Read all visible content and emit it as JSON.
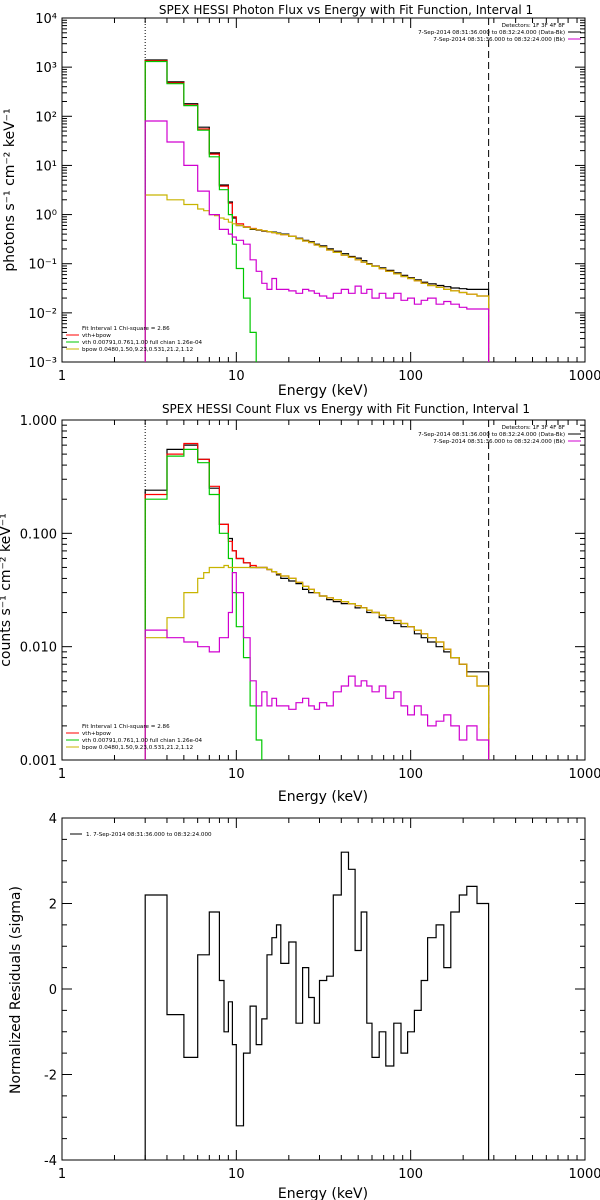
{
  "colors": {
    "data": "#000000",
    "total": "#ff0000",
    "vth": "#00c800",
    "bpow": "#c8b400",
    "bk": "#d000d0"
  },
  "chart_data": [
    {
      "type": "line",
      "title": "SPEX HESSI Photon Flux vs Energy with Fit Function, Interval 1",
      "xlabel": "Energy (keV)",
      "ylabel": "photons s⁻¹ cm⁻² keV⁻¹",
      "xscale": "log",
      "yscale": "log",
      "xlim": [
        1,
        1000
      ],
      "ylim": [
        0.001,
        10000
      ],
      "xticks": [
        "1",
        "10",
        "100",
        "1000"
      ],
      "yticks": [
        "10⁻³",
        "10⁻²",
        "10⁻¹",
        "10⁰",
        "10¹",
        "10²",
        "10³",
        "10⁴"
      ],
      "vlines": [
        3,
        280
      ],
      "legend_right": [
        "Detectors: 1F 3F 4F 8F",
        "7-Sep-2014 08:31:36.000 to 08:32:24.000 (Data-Bk)",
        "7-Sep-2014 08:31:36.000 to 08:32:24.000 (Bk)"
      ],
      "legend_left": [
        "Fit Interval 1   Chi-square = 2.86",
        "vth+bpow",
        "vth 0.00791,0.761,1.00  full chian 1.26e-04",
        "bpow 0.0480,1.50,9.23,0.531,21.2,1.12"
      ],
      "x": [
        3,
        3.5,
        4,
        4.5,
        5,
        5.5,
        6,
        6.5,
        7,
        7.5,
        8,
        8.5,
        9,
        9.5,
        10,
        11,
        12,
        13,
        14,
        15,
        16,
        17,
        18,
        20,
        22,
        24,
        26,
        28,
        30,
        33,
        36,
        40,
        44,
        48,
        52,
        56,
        60,
        66,
        72,
        80,
        88,
        96,
        105,
        115,
        125,
        140,
        155,
        170,
        190,
        210,
        240,
        280
      ],
      "series": [
        {
          "name": "Data-Bk",
          "color": "data",
          "values": [
            1400,
            1400,
            500,
            500,
            180,
            180,
            60,
            60,
            18,
            18,
            4,
            4,
            1.8,
            0.85,
            0.6,
            0.55,
            0.5,
            0.48,
            0.46,
            0.45,
            0.44,
            0.42,
            0.4,
            0.36,
            0.33,
            0.3,
            0.28,
            0.25,
            0.23,
            0.2,
            0.18,
            0.16,
            0.14,
            0.13,
            0.115,
            0.1,
            0.09,
            0.082,
            0.073,
            0.065,
            0.058,
            0.052,
            0.047,
            0.042,
            0.039,
            0.036,
            0.034,
            0.032,
            0.031,
            0.03,
            0.03,
            0.03
          ]
        },
        {
          "name": "vth+bpow",
          "color": "total",
          "values": [
            1350,
            1350,
            480,
            480,
            170,
            170,
            55,
            55,
            17,
            17,
            3.8,
            3.8,
            1.7,
            0.9,
            0.65,
            0.56,
            0.52,
            0.49,
            0.47,
            0.45,
            0.43,
            0.41,
            0.39,
            0.36,
            0.32,
            0.29,
            0.27,
            0.24,
            0.22,
            0.19,
            0.17,
            0.15,
            0.135,
            0.12,
            0.108,
            0.097,
            0.088,
            0.079,
            0.07,
            0.062,
            0.055,
            0.05,
            0.045,
            0.04,
            0.036,
            0.033,
            0.03,
            0.028,
            0.026,
            0.024,
            0.022,
            0.02
          ]
        },
        {
          "name": "vth",
          "color": "vth",
          "values": [
            1300,
            1300,
            460,
            460,
            165,
            165,
            52,
            52,
            15,
            15,
            3.2,
            3.2,
            1.0,
            0.25,
            0.08,
            0.02,
            0.004,
            0.0009,
            0.0009,
            0.0009,
            0.0009,
            0.0009,
            0.0009,
            0.0009,
            0.0009,
            0.0009,
            0.0009,
            0.0009,
            0.0009,
            0.0009,
            0.0009,
            0.0009,
            0.0009,
            0.0009,
            0.0009,
            0.0009,
            0.0009,
            0.0009,
            0.0009,
            0.0009,
            0.0009,
            0.0009,
            0.0009,
            0.0009,
            0.0009,
            0.0009,
            0.0009,
            0.0009,
            0.0009,
            0.0009,
            0.0009,
            0.0009
          ]
        },
        {
          "name": "bpow",
          "color": "bpow",
          "values": [
            2.5,
            2.5,
            2.0,
            2.0,
            1.6,
            1.6,
            1.3,
            1.2,
            1.0,
            0.95,
            0.85,
            0.8,
            0.7,
            0.65,
            0.6,
            0.55,
            0.51,
            0.49,
            0.47,
            0.45,
            0.43,
            0.41,
            0.39,
            0.36,
            0.32,
            0.29,
            0.27,
            0.24,
            0.22,
            0.19,
            0.17,
            0.15,
            0.135,
            0.12,
            0.108,
            0.097,
            0.088,
            0.079,
            0.07,
            0.062,
            0.055,
            0.05,
            0.045,
            0.04,
            0.036,
            0.033,
            0.03,
            0.028,
            0.026,
            0.024,
            0.022,
            0.02
          ]
        },
        {
          "name": "Bk",
          "color": "bk",
          "values": [
            80,
            80,
            30,
            30,
            10,
            10,
            3.0,
            3.0,
            1.0,
            1.0,
            0.5,
            0.5,
            0.4,
            0.35,
            0.3,
            0.25,
            0.12,
            0.07,
            0.04,
            0.03,
            0.05,
            0.03,
            0.03,
            0.028,
            0.025,
            0.03,
            0.028,
            0.025,
            0.022,
            0.02,
            0.025,
            0.03,
            0.025,
            0.035,
            0.025,
            0.03,
            0.02,
            0.025,
            0.02,
            0.025,
            0.018,
            0.02,
            0.015,
            0.018,
            0.02,
            0.015,
            0.017,
            0.015,
            0.013,
            0.012,
            0.012,
            0.001
          ]
        }
      ]
    },
    {
      "type": "line",
      "title": "SPEX HESSI Count Flux vs Energy with Fit Function, Interval 1",
      "xlabel": "Energy (keV)",
      "ylabel": "counts s⁻¹ cm⁻² keV⁻¹",
      "xscale": "log",
      "yscale": "log",
      "xlim": [
        1,
        1000
      ],
      "ylim": [
        0.001,
        1
      ],
      "xticks": [
        "1",
        "10",
        "100",
        "1000"
      ],
      "yticks": [
        "0.001",
        "0.010",
        "0.100",
        "1.000"
      ],
      "vlines": [
        3,
        280
      ],
      "legend_right": [
        "Detectors: 1F 3F 4F 8F",
        "7-Sep-2014 08:31:36.000 to 08:32:24.000 (Data-Bk)",
        "7-Sep-2014 08:31:36.000 to 08:32:24.000 (Bk)"
      ],
      "legend_left": [
        "Fit Interval 1   Chi-square = 2.86",
        "vth+bpow",
        "vth 0.00791,0.761,1.00  full chian 1.26e-04",
        "bpow 0.0480,1.50,9.23,0.531,21.2,1.12"
      ],
      "x": [
        3,
        3.5,
        4,
        4.5,
        5,
        5.5,
        6,
        6.5,
        7,
        7.5,
        8,
        8.5,
        9,
        9.5,
        10,
        11,
        12,
        13,
        14,
        15,
        16,
        17,
        18,
        20,
        22,
        24,
        26,
        28,
        30,
        33,
        36,
        40,
        44,
        48,
        52,
        56,
        60,
        66,
        72,
        80,
        88,
        96,
        105,
        115,
        125,
        140,
        155,
        170,
        190,
        210,
        240,
        280
      ],
      "series": [
        {
          "name": "Data-Bk",
          "color": "data",
          "values": [
            0.24,
            0.24,
            0.55,
            0.55,
            0.6,
            0.6,
            0.45,
            0.45,
            0.25,
            0.25,
            0.12,
            0.12,
            0.09,
            0.07,
            0.06,
            0.055,
            0.05,
            0.05,
            0.05,
            0.048,
            0.046,
            0.043,
            0.04,
            0.038,
            0.036,
            0.032,
            0.03,
            0.03,
            0.028,
            0.026,
            0.025,
            0.024,
            0.024,
            0.022,
            0.022,
            0.02,
            0.02,
            0.018,
            0.017,
            0.016,
            0.015,
            0.015,
            0.013,
            0.012,
            0.011,
            0.01,
            0.009,
            0.008,
            0.007,
            0.006,
            0.006,
            0.005
          ]
        },
        {
          "name": "vth+bpow",
          "color": "total",
          "values": [
            0.22,
            0.22,
            0.5,
            0.5,
            0.62,
            0.62,
            0.45,
            0.45,
            0.26,
            0.26,
            0.12,
            0.12,
            0.085,
            0.07,
            0.06,
            0.055,
            0.052,
            0.05,
            0.05,
            0.048,
            0.046,
            0.044,
            0.042,
            0.04,
            0.037,
            0.034,
            0.032,
            0.03,
            0.028,
            0.027,
            0.026,
            0.025,
            0.024,
            0.023,
            0.022,
            0.021,
            0.02,
            0.019,
            0.018,
            0.017,
            0.016,
            0.015,
            0.014,
            0.013,
            0.012,
            0.011,
            0.0095,
            0.008,
            0.007,
            0.0055,
            0.0045,
            0.004
          ]
        },
        {
          "name": "vth",
          "color": "vth",
          "values": [
            0.2,
            0.2,
            0.48,
            0.48,
            0.55,
            0.55,
            0.42,
            0.42,
            0.22,
            0.22,
            0.1,
            0.1,
            0.06,
            0.03,
            0.015,
            0.008,
            0.003,
            0.0015,
            0.0009,
            0.0009,
            0.0009,
            0.0009,
            0.0009,
            0.0009,
            0.0009,
            0.0009,
            0.0009,
            0.0009,
            0.0009,
            0.0009,
            0.0009,
            0.0009,
            0.0009,
            0.0009,
            0.0009,
            0.0009,
            0.0009,
            0.0009,
            0.0009,
            0.0009,
            0.0009,
            0.0009,
            0.0009,
            0.0009,
            0.0009,
            0.0009,
            0.0009,
            0.0009,
            0.0009,
            0.0009,
            0.0009,
            0.0009
          ]
        },
        {
          "name": "bpow",
          "color": "bpow",
          "values": [
            0.012,
            0.012,
            0.018,
            0.018,
            0.03,
            0.03,
            0.04,
            0.045,
            0.05,
            0.05,
            0.05,
            0.052,
            0.05,
            0.05,
            0.05,
            0.05,
            0.05,
            0.05,
            0.05,
            0.048,
            0.046,
            0.044,
            0.042,
            0.04,
            0.037,
            0.034,
            0.032,
            0.03,
            0.028,
            0.027,
            0.026,
            0.025,
            0.024,
            0.023,
            0.022,
            0.021,
            0.02,
            0.019,
            0.018,
            0.017,
            0.016,
            0.015,
            0.014,
            0.013,
            0.012,
            0.011,
            0.0095,
            0.008,
            0.007,
            0.0055,
            0.0045,
            0.001
          ]
        },
        {
          "name": "Bk",
          "color": "bk",
          "values": [
            0.014,
            0.014,
            0.012,
            0.012,
            0.011,
            0.011,
            0.01,
            0.01,
            0.009,
            0.009,
            0.012,
            0.012,
            0.02,
            0.045,
            0.03,
            0.012,
            0.005,
            0.003,
            0.004,
            0.003,
            0.0035,
            0.003,
            0.003,
            0.0028,
            0.0032,
            0.0035,
            0.003,
            0.0028,
            0.0032,
            0.003,
            0.004,
            0.0045,
            0.0055,
            0.0045,
            0.005,
            0.0045,
            0.004,
            0.0045,
            0.0035,
            0.004,
            0.003,
            0.0025,
            0.003,
            0.0025,
            0.002,
            0.0022,
            0.0025,
            0.002,
            0.0015,
            0.002,
            0.0015,
            0.001
          ]
        }
      ]
    },
    {
      "type": "line",
      "title": "",
      "xlabel": "Energy (keV)",
      "ylabel": "Normalized Residuals (sigma)",
      "xscale": "log",
      "yscale": "linear",
      "xlim": [
        1,
        1000
      ],
      "ylim": [
        -4,
        4
      ],
      "xticks": [
        "1",
        "10",
        "100",
        "1000"
      ],
      "yticks": [
        "-4",
        "-2",
        "0",
        "2",
        "4"
      ],
      "legend_right": [],
      "legend_left": [
        "1.  7-Sep-2014 08:31:36.000 to 08:32:24.000"
      ],
      "x": [
        3,
        3.5,
        4,
        4.5,
        5,
        5.5,
        6,
        6.5,
        7,
        7.5,
        8,
        8.5,
        9,
        9.5,
        10,
        11,
        12,
        13,
        14,
        15,
        16,
        17,
        18,
        20,
        22,
        24,
        26,
        28,
        30,
        33,
        36,
        40,
        44,
        48,
        52,
        56,
        60,
        66,
        72,
        80,
        88,
        96,
        105,
        115,
        125,
        140,
        155,
        170,
        190,
        210,
        240,
        280
      ],
      "series": [
        {
          "name": "1.  7-Sep-2014 08:31:36.000 to 08:32:24.000",
          "color": "data",
          "values": [
            2.2,
            2.2,
            -0.6,
            -0.6,
            -1.6,
            -1.6,
            0.8,
            0.8,
            1.8,
            1.8,
            0.2,
            -1.0,
            -0.3,
            -1.3,
            -3.2,
            -1.5,
            -0.4,
            -1.3,
            -0.7,
            0.8,
            1.2,
            1.5,
            0.6,
            1.1,
            -0.8,
            0.5,
            -0.2,
            -0.8,
            0.2,
            0.3,
            2.2,
            3.2,
            2.8,
            0.9,
            1.8,
            -0.8,
            -1.6,
            -1.0,
            -1.8,
            -0.8,
            -1.5,
            -1.0,
            -0.5,
            0.2,
            1.2,
            1.5,
            0.5,
            1.8,
            2.2,
            2.4,
            2.0,
            0.0
          ]
        }
      ]
    }
  ]
}
